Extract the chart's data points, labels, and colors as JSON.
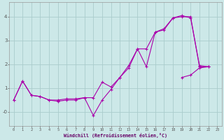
{
  "background_color": "#cce8e8",
  "grid_color": "#aacccc",
  "line_color": "#aa00aa",
  "xlabel": "Windchill (Refroidissement éolien,°C)",
  "xlim": [
    -0.5,
    23.5
  ],
  "ylim": [
    -0.6,
    4.6
  ],
  "yticks": [
    0,
    1,
    2,
    3,
    4
  ],
  "ytick_labels": [
    "-0",
    "1",
    "2",
    "3",
    "4"
  ],
  "xticks": [
    0,
    1,
    2,
    3,
    4,
    5,
    6,
    7,
    8,
    9,
    10,
    11,
    12,
    13,
    14,
    15,
    16,
    17,
    18,
    19,
    20,
    21,
    22,
    23
  ],
  "line1_x": [
    0,
    1,
    2,
    3,
    4,
    5,
    6,
    7,
    8,
    9,
    10,
    11,
    12,
    13,
    14,
    15,
    16,
    17,
    18,
    19,
    20,
    21,
    22
  ],
  "line1_y": [
    0.5,
    1.3,
    0.7,
    0.65,
    0.5,
    0.45,
    0.5,
    0.5,
    0.6,
    0.6,
    1.25,
    1.05,
    1.45,
    1.85,
    2.65,
    1.9,
    3.35,
    3.45,
    3.95,
    4.0,
    4.0,
    1.9,
    1.9
  ],
  "line2_x": [
    0,
    1,
    2,
    3,
    4,
    5,
    6,
    7,
    8,
    9,
    10,
    11,
    12,
    13,
    14,
    15,
    16,
    17,
    18,
    19,
    20,
    21,
    22
  ],
  "line2_y": [
    0.5,
    1.3,
    0.7,
    0.65,
    0.5,
    0.5,
    0.55,
    0.55,
    0.6,
    -0.15,
    0.5,
    0.95,
    1.45,
    1.95,
    2.65,
    2.65,
    3.35,
    3.5,
    3.95,
    4.05,
    3.95,
    1.95,
    1.9
  ],
  "line3_x": [
    19,
    20,
    21,
    22
  ],
  "line3_y": [
    1.45,
    1.55,
    1.85,
    1.9
  ],
  "lw": 0.8,
  "ms": 2.2
}
